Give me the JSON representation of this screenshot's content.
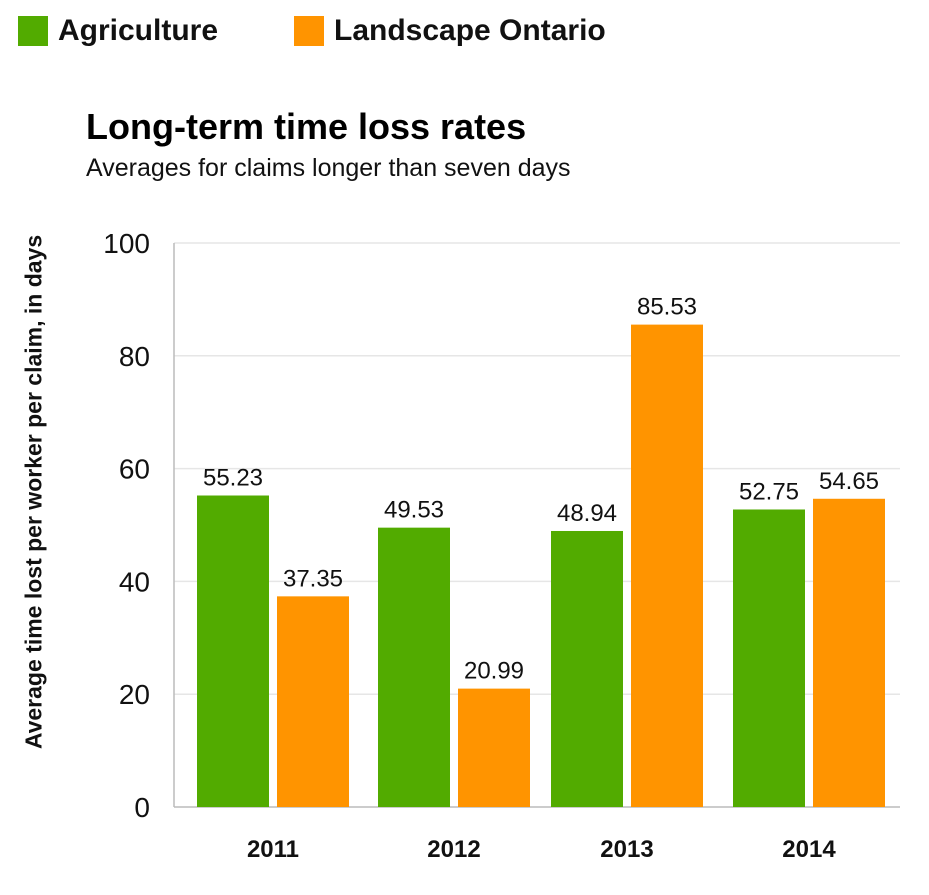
{
  "chart_data": {
    "type": "bar",
    "title": "Long-term time loss rates",
    "subtitle": "Averages for claims longer than seven days",
    "xlabel": "",
    "ylabel": "Average time lost per worker per claim, in days",
    "categories": [
      "2011",
      "2012",
      "2013",
      "2014"
    ],
    "series": [
      {
        "name": "Agriculture",
        "color": "#52ab00",
        "values": [
          55.23,
          49.53,
          48.94,
          52.75
        ]
      },
      {
        "name": "Landscape Ontario",
        "color": "#ff9400",
        "values": [
          37.35,
          20.99,
          85.53,
          54.65
        ]
      }
    ],
    "ylim": [
      0,
      100
    ],
    "yticks": [
      0,
      20,
      40,
      60,
      80,
      100
    ],
    "grid": true,
    "legend": "top-left",
    "data_labels": true
  }
}
